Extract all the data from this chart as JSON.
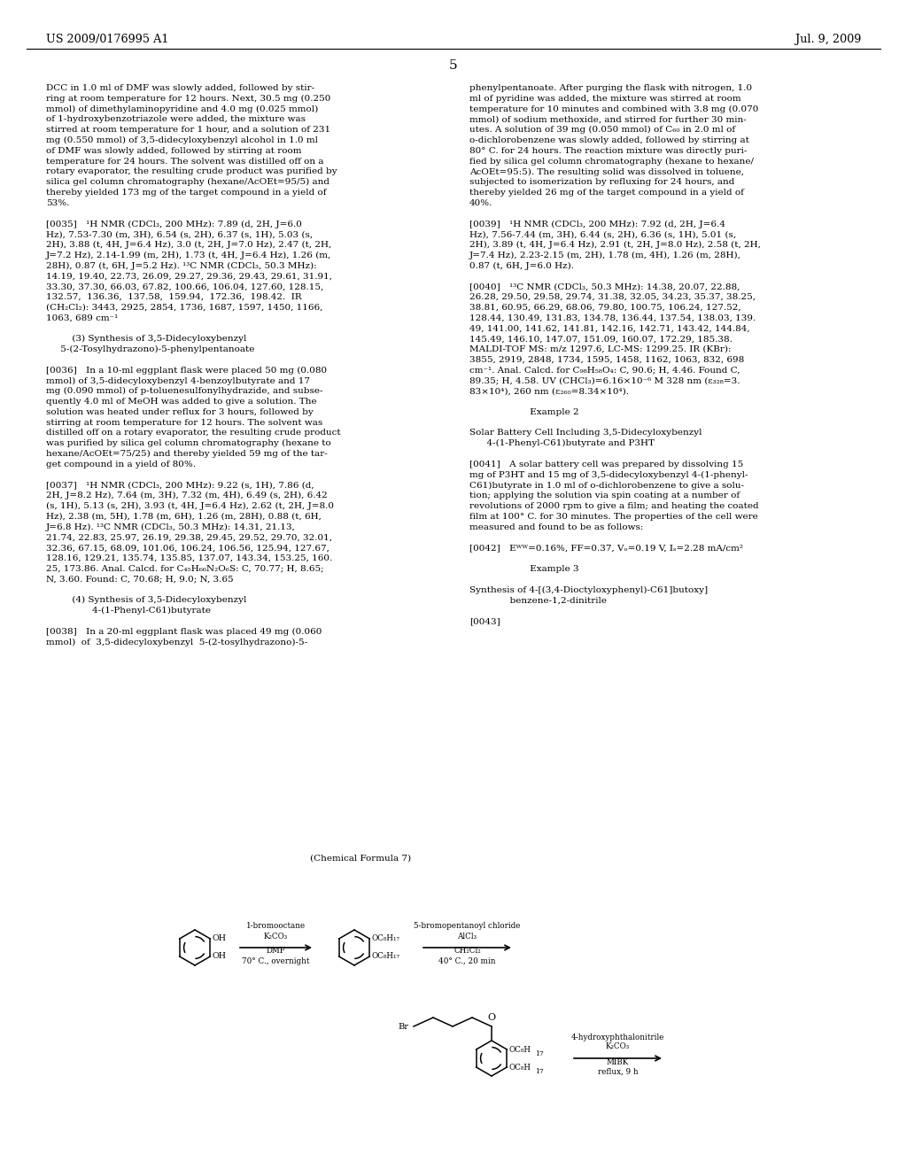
{
  "page_header_left": "US 2009/0176995 A1",
  "page_header_right": "Jul. 9, 2009",
  "page_number": "5",
  "background_color": "#ffffff",
  "text_color": "#000000",
  "left_column_text": [
    "DCC in 1.0 ml of DMF was slowly added, followed by stir-",
    "ring at room temperature for 12 hours. Next, 30.5 mg (0.250",
    "mmol) of dimethylaminopyridine and 4.0 mg (0.025 mmol)",
    "of 1-hydroxybenzotriazole were added, the mixture was",
    "stirred at room temperature for 1 hour, and a solution of 231",
    "mg (0.550 mmol) of 3,5-didecyloxybenzyl alcohol in 1.0 ml",
    "of DMF was slowly added, followed by stirring at room",
    "temperature for 24 hours. The solvent was distilled off on a",
    "rotary evaporator, the resulting crude product was purified by",
    "silica gel column chromatography (hexane/AcOEt=95/5) and",
    "thereby yielded 173 mg of the target compound in a yield of",
    "53%.",
    "",
    "[0035] ¹H NMR (CDCl₃, 200 MHz): 7.89 (d, 2H, J=6.0",
    "Hz), 7.53-7.30 (m, 3H), 6.54 (s, 2H), 6.37 (s, 1H), 5.03 (s,",
    "2H), 3.88 (t, 4H, J=6.4 Hz), 3.0 (t, 2H, J=7.0 Hz), 2.47 (t, 2H,",
    "J=7.2 Hz), 2.14-1.99 (m, 2H), 1.73 (t, 4H, J=6.4 Hz), 1.26 (m,",
    "28H), 0.87 (t, 6H, J=5.2 Hz). ¹³C NMR (CDCl₃, 50.3 MHz):",
    "14.19, 19.40, 22.73, 26.09, 29.27, 29.36, 29.43, 29.61, 31.91,",
    "33.30, 37.30, 66.03, 67.82, 100.66, 106.04, 127.60, 128.15,",
    "132.57,  136.36,  137.58,  159.94,  172.36,  198.42.  IR",
    "(CH₂Cl₂): 3443, 2925, 2854, 1736, 1687, 1597, 1450, 1166,",
    "1063, 689 cm⁻¹",
    "",
    "         (3) Synthesis of 3,5-Didecyloxybenzyl",
    "     5-(2-Tosylhydrazono)-5-phenylpentanoate",
    "",
    "[0036] In a 10-ml eggplant flask were placed 50 mg (0.080",
    "mmol) of 3,5-didecyloxybenzyl 4-benzoylbutyrate and 17",
    "mg (0.090 mmol) of p-toluenesulfonylhydrazide, and subse-",
    "quently 4.0 ml of MeOH was added to give a solution. The",
    "solution was heated under reflux for 3 hours, followed by",
    "stirring at room temperature for 12 hours. The solvent was",
    "distilled off on a rotary evaporator, the resulting crude product",
    "was purified by silica gel column chromatography (hexane to",
    "hexane/AcOEt=75/25) and thereby yielded 59 mg of the tar-",
    "get compound in a yield of 80%.",
    "",
    "[0037] ¹H NMR (CDCl₃, 200 MHz): 9.22 (s, 1H), 7.86 (d,",
    "2H, J=8.2 Hz), 7.64 (m, 3H), 7.32 (m, 4H), 6.49 (s, 2H), 6.42",
    "(s, 1H), 5.13 (s, 2H), 3.93 (t, 4H, J=6.4 Hz), 2.62 (t, 2H, J=8.0",
    "Hz), 2.38 (m, 5H), 1.78 (m, 6H), 1.26 (m, 28H), 0.88 (t, 6H,",
    "J=6.8 Hz). ¹³C NMR (CDCl₃, 50.3 MHz): 14.31, 21.13,",
    "21.74, 22.83, 25.97, 26.19, 29.38, 29.45, 29.52, 29.70, 32.01,",
    "32.36, 67.15, 68.09, 101.06, 106.24, 106.56, 125.94, 127.67,",
    "128.16, 129.21, 135.74, 135.85, 137.07, 143.34, 153.25, 160.",
    "25, 173.86. Anal. Calcd. for C₄₅H₆₆N₂O₆S: C, 70.77; H, 8.65;",
    "N, 3.60. Found: C, 70.68; H, 9.0; N, 3.65",
    "",
    "         (4) Synthesis of 3,5-Didecyloxybenzyl",
    "                4-(1-Phenyl-C61)butyrate",
    "",
    "[0038] In a 20-ml eggplant flask was placed 49 mg (0.060",
    "mmol)  of  3,5-didecyloxybenzyl  5-(2-tosylhydrazono)-5-"
  ],
  "right_column_text": [
    "phenylpentanoate. After purging the flask with nitrogen, 1.0",
    "ml of pyridine was added, the mixture was stirred at room",
    "temperature for 10 minutes and combined with 3.8 mg (0.070",
    "mmol) of sodium methoxide, and stirred for further 30 min-",
    "utes. A solution of 39 mg (0.050 mmol) of C₆₀ in 2.0 ml of",
    "o-dichlorobenzene was slowly added, followed by stirring at",
    "80° C. for 24 hours. The reaction mixture was directly puri-",
    "fied by silica gel column chromatography (hexane to hexane/",
    "AcOEt=95:5). The resulting solid was dissolved in toluene,",
    "subjected to isomerization by refluxing for 24 hours, and",
    "thereby yielded 26 mg of the target compound in a yield of",
    "40%.",
    "",
    "[0039] ¹H NMR (CDCl₃, 200 MHz): 7.92 (d, 2H, J=6.4",
    "Hz), 7.56-7.44 (m, 3H), 6.44 (s, 2H), 6.36 (s, 1H), 5.01 (s,",
    "2H), 3.89 (t, 4H, J=6.4 Hz), 2.91 (t, 2H, J=8.0 Hz), 2.58 (t, 2H,",
    "J=7.4 Hz), 2.23-2.15 (m, 2H), 1.78 (m, 4H), 1.26 (m, 28H),",
    "0.87 (t, 6H, J=6.0 Hz).",
    "",
    "[0040] ¹³C NMR (CDCl₃, 50.3 MHz): 14.38, 20.07, 22.88,",
    "26.28, 29.50, 29.58, 29.74, 31.38, 32.05, 34.23, 35.37, 38.25,",
    "38.81, 60.95, 66.29, 68.06, 79.80, 100.75, 106.24, 127.52,",
    "128.44, 130.49, 131.83, 134.78, 136.44, 137.54, 138.03, 139.",
    "49, 141.00, 141.62, 141.81, 142.16, 142.71, 143.42, 144.84,",
    "145.49, 146.10, 147.07, 151.09, 160.07, 172.29, 185.38.",
    "MALDI-TOF MS: m/z 1297.6, LC-MS: 1299.25. IR (KBr):",
    "3855, 2919, 2848, 1734, 1595, 1458, 1162, 1063, 832, 698",
    "cm⁻¹. Anal. Calcd. for C₉₈H₅₈O₄: C, 90.6; H, 4.46. Found C,",
    "89.35; H, 4.58. UV (CHCl₃)=6.16×10⁻⁶ M 328 nm (ε₃₂₈=3.",
    "83×10⁴), 260 nm (ε₂₆₀=8.34×10⁴).",
    "",
    "                     Example 2",
    "",
    "Solar Battery Cell Including 3,5-Didecyloxybenzyl",
    "      4-(1-Phenyl-C61)butyrate and P3HT",
    "",
    "[0041] A solar battery cell was prepared by dissolving 15",
    "mg of P3HT and 15 mg of 3,5-didecyloxybenzyl 4-(1-phenyl-",
    "C61)butyrate in 1.0 ml of o-dichlorobenzene to give a solu-",
    "tion; applying the solution via spin coating at a number of",
    "revolutions of 2000 rpm to give a film; and heating the coated",
    "film at 100° C. for 30 minutes. The properties of the cell were",
    "measured and found to be as follows:",
    "",
    "[0042] Eᵂᵂ=0.16%, FF=0.37, Vₒ⁣=0.19 V, Iₛ⁣=2.28 mA/cm²",
    "",
    "                     Example 3",
    "",
    "Synthesis of 4-[(3,4-Dioctyloxyphenyl)-C61]butoxy]",
    "              benzene-1,2-dinitrile",
    "",
    "[0043]"
  ],
  "chem_formula_label": "(Chemical Formula 7)",
  "figsize": [
    10.24,
    13.2
  ],
  "dpi": 100
}
